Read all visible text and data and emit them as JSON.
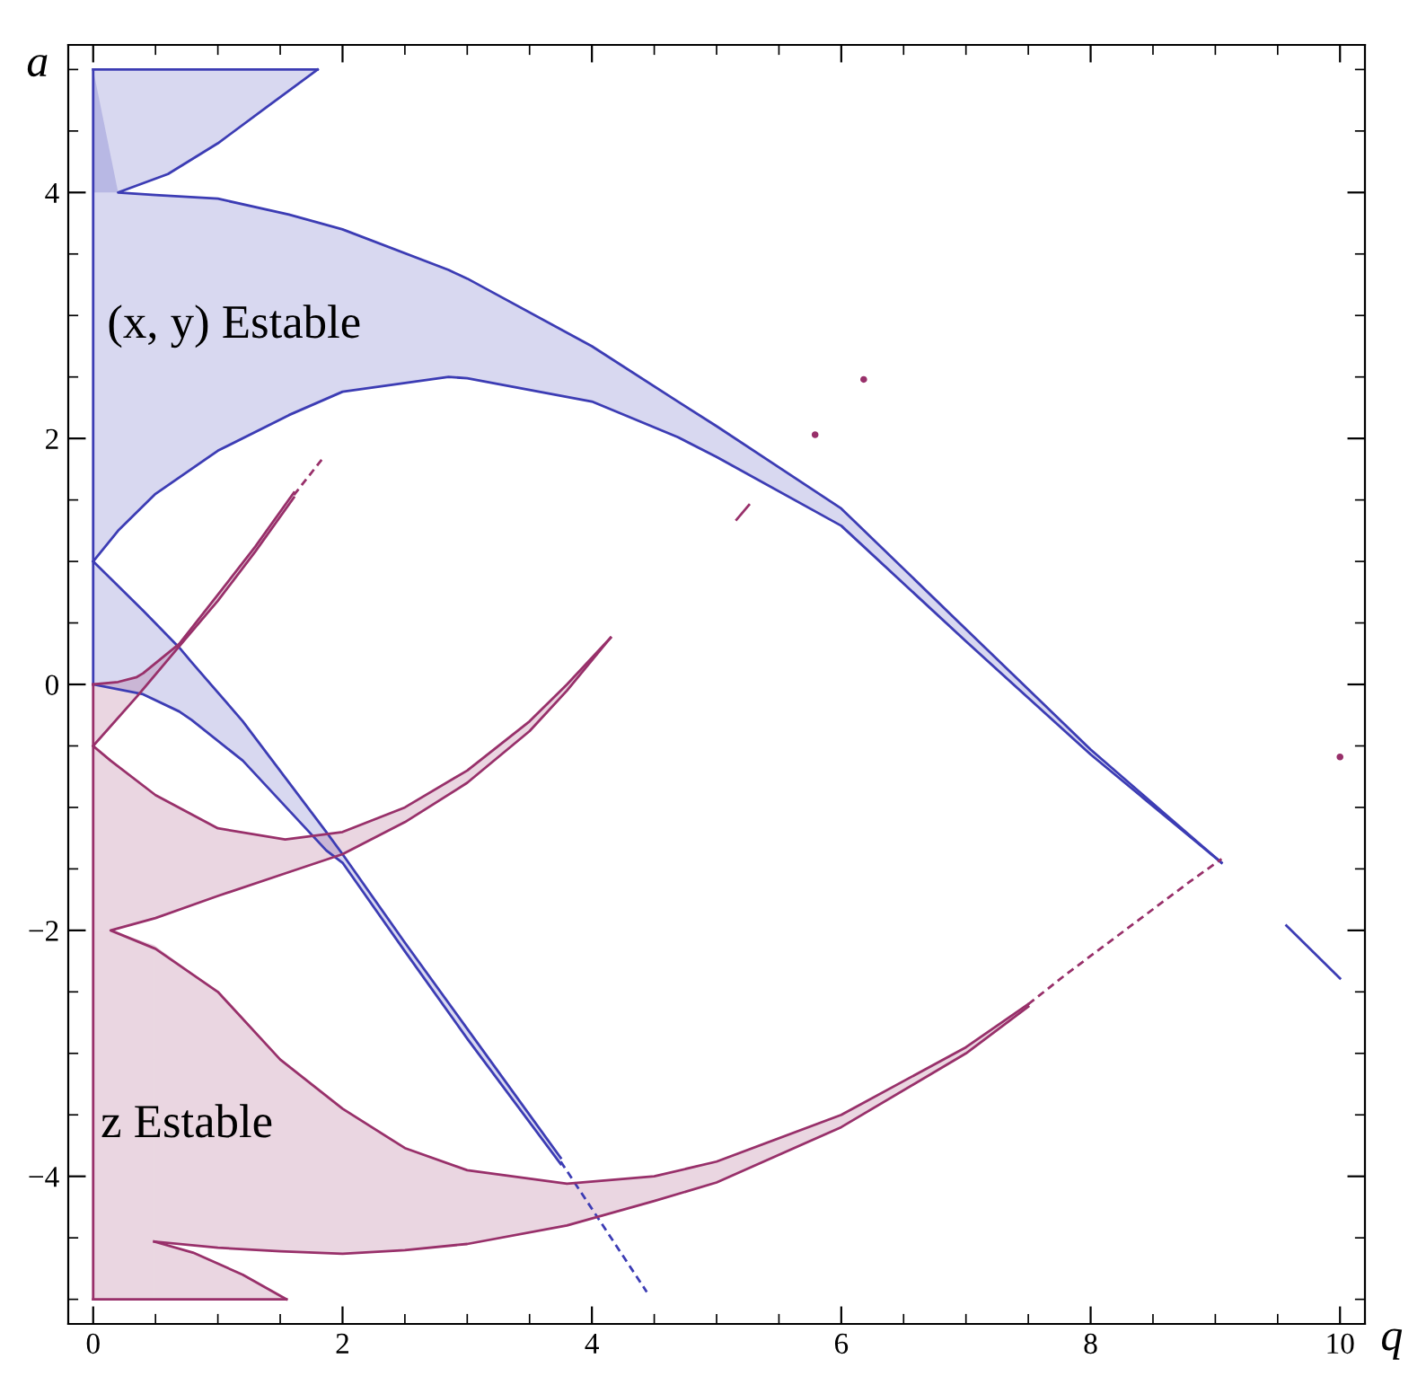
{
  "chart_data": {
    "type": "line",
    "xlabel": "q",
    "ylabel": "a",
    "xlim": [
      -0.2,
      10.2
    ],
    "ylim": [
      -5.2,
      5.2
    ],
    "xticks": [
      0,
      {
        "value": 0.5,
        "label": null
      },
      {
        "value": 1,
        "label": null
      },
      {
        "value": 1.5,
        "label": null
      },
      2,
      {
        "value": 2.5,
        "label": null
      },
      {
        "value": 3,
        "label": null
      },
      {
        "value": 3.5,
        "label": null
      },
      4,
      {
        "value": 4.5,
        "label": null
      },
      {
        "value": 5,
        "label": null
      },
      {
        "value": 5.5,
        "label": null
      },
      6,
      {
        "value": 6.5,
        "label": null
      },
      {
        "value": 7,
        "label": null
      },
      {
        "value": 7.5,
        "label": null
      },
      8,
      {
        "value": 8.5,
        "label": null
      },
      {
        "value": 9,
        "label": null
      },
      {
        "value": 9.5,
        "label": null
      },
      10
    ],
    "yticks": [
      {
        "value": -4,
        "label": "−4"
      },
      {
        "value": -5,
        "label": null
      },
      {
        "value": -4.5,
        "label": null
      },
      {
        "value": -3.5,
        "label": null
      },
      {
        "value": -3,
        "label": null
      },
      {
        "value": -2.5,
        "label": null
      },
      {
        "value": -2,
        "label": "−2"
      },
      {
        "value": -1.5,
        "label": null
      },
      {
        "value": -1,
        "label": null
      },
      {
        "value": -0.5,
        "label": null
      },
      0,
      {
        "value": 0.5,
        "label": null
      },
      {
        "value": 1,
        "label": null
      },
      {
        "value": 1.5,
        "label": null
      },
      2,
      {
        "value": 2.5,
        "label": null
      },
      {
        "value": 3,
        "label": null
      },
      {
        "value": 3.5,
        "label": null
      },
      4,
      {
        "value": 4.5,
        "label": null
      },
      {
        "value": 5,
        "label": null
      }
    ],
    "grid": false,
    "annotations": [
      "(x, y) Estable",
      "z Estable"
    ],
    "series": [
      {
        "color": "#3c3cb4",
        "x": [
          0,
          0.2,
          0.5,
          1,
          1.57,
          2,
          2.85,
          3,
          4,
          4.69,
          5,
          6,
          7,
          8,
          9.05
        ],
        "values": [
          1,
          1.25,
          1.55,
          1.9,
          2.19,
          2.38,
          2.5,
          2.49,
          2.3,
          2.01,
          1.85,
          1.29,
          0.35,
          -0.57,
          -1.45
        ],
        "lower": [
          1,
          1.25,
          1.55,
          1.9,
          2.19,
          2.38,
          2.5,
          2.49,
          2.3,
          2.01,
          1.85,
          1.29,
          0.35,
          -0.57,
          -1.45
        ],
        "upper": [
          5,
          4.0,
          3.98,
          3.95,
          3.82,
          3.7,
          3.37,
          3.3,
          2.75,
          2.3,
          2.1,
          1.43,
          0.45,
          -0.53,
          -1.45
        ]
      },
      {
        "color": "#3c3cb4",
        "x": [
          1.8,
          1.4,
          1,
          0.6,
          0.2,
          0.5,
          1,
          1.57,
          2,
          2.85,
          3,
          4,
          4.69,
          5,
          6,
          7,
          8,
          9.05
        ],
        "values": [
          5,
          4.7,
          4.4,
          4.15,
          4.0,
          3.98,
          3.95,
          3.82,
          3.7,
          3.37,
          3.3,
          2.75,
          2.3,
          2.1,
          1.43,
          0.45,
          -0.53,
          -1.45
        ]
      },
      {
        "color": "#3c3cb4",
        "x": [
          0,
          0.2,
          0.6,
          1,
          1.4,
          1.8
        ],
        "values": [
          5,
          5,
          5,
          5,
          5,
          5
        ],
        "lower": [
          4.0,
          4.0,
          4.15,
          4.4,
          4.7,
          5
        ],
        "upper": [
          5,
          5,
          5,
          5,
          5,
          5
        ]
      },
      {
        "color": "#3c3cb4",
        "x": [
          0,
          0
        ],
        "values": [
          0,
          5
        ]
      },
      {
        "color": "#3c3cb4",
        "x": [
          0,
          0.4,
          0.69,
          0.79,
          1.2,
          1.87,
          2.0,
          2.5,
          3,
          3.75
        ],
        "values": [
          1,
          0.6,
          0.3,
          0.18,
          -0.3,
          -1.2,
          -1.38,
          -2.1,
          -2.8,
          -3.85
        ],
        "lower": [
          0,
          -0.08,
          -0.22,
          -0.29,
          -0.62,
          -1.35,
          -1.45,
          -2.17,
          -2.88,
          -3.9
        ],
        "upper": [
          1,
          0.6,
          0.3,
          0.18,
          -0.3,
          -1.2,
          -1.38,
          -2.1,
          -2.8,
          -3.85
        ]
      },
      {
        "color": "#3c3cb4",
        "x": [
          0,
          0.4,
          0.69,
          0.79,
          1.2,
          1.87,
          2.0,
          2.5,
          3,
          3.75
        ],
        "values": [
          0,
          -0.08,
          -0.22,
          -0.29,
          -0.62,
          -1.35,
          -1.45,
          -2.17,
          -2.88,
          -3.9
        ]
      },
      {
        "color": "#3c3cb4",
        "line_style": "dashed",
        "x": [
          3.75,
          4.44
        ],
        "values": [
          -3.88,
          -4.94
        ]
      },
      {
        "color": "#3c3cb4",
        "x": [
          9.57,
          10
        ],
        "values": [
          -1.96,
          -2.39
        ]
      },
      {
        "color": "#98306a",
        "x": [
          0,
          0
        ],
        "values": [
          -5,
          0
        ]
      },
      {
        "color": "#98306a",
        "x": [
          0,
          0.2,
          0.35,
          0.4,
          0.69,
          1,
          1.3,
          1.61
        ],
        "values": [
          0,
          0.02,
          0.06,
          0.09,
          0.33,
          0.73,
          1.12,
          1.56
        ],
        "lower": [
          -0.5,
          -0.27,
          -0.1,
          -0.04,
          0.31,
          0.68,
          1.08,
          1.52
        ],
        "upper": [
          0,
          0.02,
          0.06,
          0.09,
          0.33,
          0.73,
          1.12,
          1.56
        ]
      },
      {
        "color": "#98306a",
        "x": [
          0,
          0.35,
          0.69,
          1,
          1.3,
          1.61
        ],
        "values": [
          -0.5,
          -0.1,
          0.31,
          0.68,
          1.08,
          1.52
        ]
      },
      {
        "color": "#98306a",
        "line_style": "dashed",
        "x": [
          1.61,
          1.85
        ],
        "values": [
          1.54,
          1.85
        ]
      },
      {
        "color": "#98306a",
        "x": [
          0,
          0.14,
          0.5,
          1,
          1.54,
          2,
          2.5,
          3,
          3.5,
          3.8,
          4.15
        ],
        "values": [
          -0.5,
          -0.62,
          -0.9,
          -1.17,
          -1.26,
          -1.2,
          -1.0,
          -0.7,
          -0.3,
          0.0,
          0.38
        ],
        "lower": [
          -2,
          -2,
          -1.9,
          -1.72,
          -1.54,
          -1.38,
          -1.12,
          -0.8,
          -0.38,
          -0.05,
          0.38
        ],
        "upper": [
          -0.5,
          -0.62,
          -0.9,
          -1.17,
          -1.26,
          -1.2,
          -1.0,
          -0.7,
          -0.3,
          0.0,
          0.38
        ]
      },
      {
        "color": "#98306a",
        "x": [
          4.15,
          3.8,
          3.5,
          3,
          2.5,
          2,
          1.5,
          1,
          0.5,
          0.14,
          0.5,
          1,
          1.5,
          2,
          2.5,
          3,
          3.8,
          4.5,
          5,
          6,
          7,
          7.5
        ],
        "values": [
          0.38,
          -0.05,
          -0.38,
          -0.8,
          -1.12,
          -1.38,
          -1.55,
          -1.72,
          -1.9,
          -2,
          -2.15,
          -2.5,
          -3.05,
          -3.45,
          -3.77,
          -3.95,
          -4.06,
          -4.0,
          -3.88,
          -3.5,
          -2.95,
          -2.6
        ]
      },
      {
        "color": "#98306a",
        "x": [
          0.49,
          1,
          1.5,
          2,
          2.5,
          3,
          3.8,
          4.5,
          5,
          6,
          7,
          7.5
        ],
        "values": [
          -4.53,
          -4.58,
          -4.61,
          -4.63,
          -4.6,
          -4.55,
          -4.4,
          -4.2,
          -4.05,
          -3.6,
          -3.0,
          -2.62
        ],
        "lower": [
          -4.53,
          -4.58,
          -4.61,
          -4.63,
          -4.6,
          -4.55,
          -4.4,
          -4.2,
          -4.05,
          -3.6,
          -3.0,
          -2.62
        ],
        "upper": [
          -2.12,
          -2.5,
          -3.05,
          -3.45,
          -3.77,
          -3.95,
          -4.06,
          -4.0,
          -3.88,
          -3.5,
          -2.95,
          -2.6
        ]
      },
      {
        "color": "#98306a",
        "x": [
          0.49,
          0.8,
          1.2,
          1.55
        ],
        "values": [
          -4.53,
          -4.62,
          -4.8,
          -5
        ],
        "lower": [
          -5,
          -5,
          -5,
          -5
        ],
        "upper": [
          -4.53,
          -4.62,
          -4.8,
          -5
        ]
      },
      {
        "color": "#98306a",
        "x": [
          0,
          0.14,
          0.49,
          0.8,
          1.2,
          1.55
        ],
        "values": [
          -5,
          -5,
          -5,
          -5,
          -5,
          -5
        ],
        "lower": [
          -5,
          -5,
          -5,
          null,
          null,
          null
        ],
        "upper": [
          -2,
          -2,
          -2.12,
          null,
          null,
          null
        ]
      },
      {
        "color": "#98306a",
        "line_style": "dashed",
        "x": [
          7.5,
          7.8,
          8.8,
          9.05
        ],
        "values": [
          -2.6,
          -2.36,
          -1.6,
          -1.42
        ]
      },
      {
        "color": "#98306a",
        "x": [
          5.16,
          5.26
        ],
        "values": [
          1.34,
          1.46
        ]
      },
      {
        "type": "scatter",
        "color": "#98306a",
        "marker": "circle",
        "x": [
          5.79,
          6.18,
          10.0
        ],
        "values": [
          2.03,
          2.48,
          -0.59
        ]
      }
    ]
  }
}
